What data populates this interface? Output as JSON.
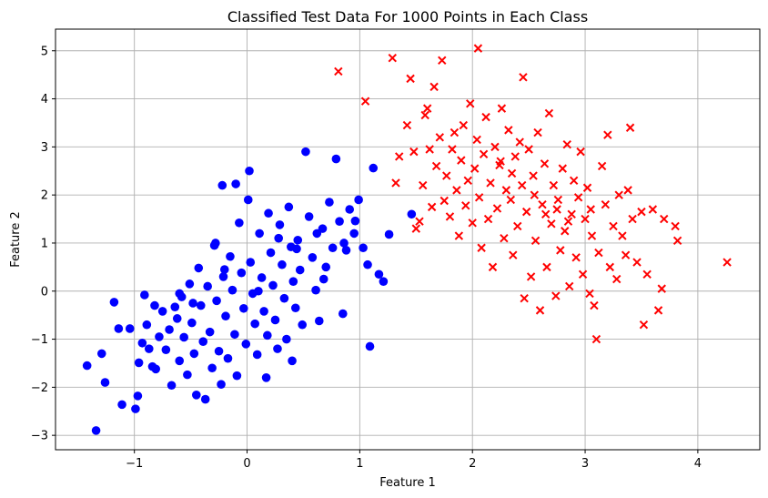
{
  "chart_data": {
    "type": "scatter",
    "title": "Classified Test Data For 1000 Points in Each Class",
    "xlabel": "Feature 1",
    "ylabel": "Feature 2",
    "xlim": [
      -1.7,
      4.55
    ],
    "ylim": [
      -3.3,
      5.45
    ],
    "xticks": [
      -1,
      0,
      1,
      2,
      3,
      4
    ],
    "yticks": [
      -3,
      -2,
      -1,
      0,
      1,
      2,
      3,
      4,
      5
    ],
    "grid": true,
    "legend": "none",
    "series": [
      {
        "marker": "circle",
        "color": "#0000ff",
        "points": [
          [
            -1.42,
            -1.55
          ],
          [
            -1.34,
            -2.9
          ],
          [
            -1.29,
            -1.3
          ],
          [
            -1.26,
            -1.9
          ],
          [
            -1.18,
            -0.23
          ],
          [
            -1.14,
            -0.78
          ],
          [
            -1.11,
            -2.36
          ],
          [
            -1.04,
            -0.78
          ],
          [
            -0.99,
            -2.45
          ],
          [
            -0.97,
            -2.18
          ],
          [
            -0.96,
            -1.49
          ],
          [
            -0.93,
            -1.08
          ],
          [
            -0.91,
            -0.08
          ],
          [
            -0.89,
            -0.7
          ],
          [
            -0.87,
            -1.2
          ],
          [
            -0.84,
            -1.57
          ],
          [
            -0.81,
            -1.62
          ],
          [
            -0.78,
            -0.95
          ],
          [
            -0.75,
            -0.42
          ],
          [
            -0.72,
            -1.22
          ],
          [
            -0.69,
            -0.8
          ],
          [
            -0.67,
            -1.96
          ],
          [
            -0.64,
            -0.33
          ],
          [
            -0.62,
            -0.57
          ],
          [
            -0.6,
            -1.45
          ],
          [
            -0.58,
            -0.12
          ],
          [
            -0.56,
            -0.96
          ],
          [
            -0.53,
            -1.74
          ],
          [
            -0.51,
            0.15
          ],
          [
            -0.49,
            -0.66
          ],
          [
            -0.47,
            -1.3
          ],
          [
            -0.45,
            -2.16
          ],
          [
            -0.43,
            0.48
          ],
          [
            -0.41,
            -0.3
          ],
          [
            -0.39,
            -1.05
          ],
          [
            -0.37,
            -2.25
          ],
          [
            -0.35,
            0.1
          ],
          [
            -0.33,
            -0.85
          ],
          [
            -0.31,
            -1.6
          ],
          [
            -0.29,
            0.95
          ],
          [
            -0.27,
            -0.2
          ],
          [
            -0.25,
            -1.25
          ],
          [
            -0.23,
            -1.94
          ],
          [
            -0.21,
            0.3
          ],
          [
            -0.19,
            -0.52
          ],
          [
            -0.17,
            -1.4
          ],
          [
            -0.15,
            0.72
          ],
          [
            -0.13,
            0.02
          ],
          [
            -0.11,
            -0.9
          ],
          [
            -0.09,
            -1.76
          ],
          [
            -0.07,
            1.42
          ],
          [
            -0.05,
            0.38
          ],
          [
            -0.03,
            -0.36
          ],
          [
            -0.01,
            -1.1
          ],
          [
            0.01,
            1.9
          ],
          [
            0.03,
            0.6
          ],
          [
            0.05,
            -0.05
          ],
          [
            0.07,
            -0.68
          ],
          [
            0.09,
            -1.32
          ],
          [
            0.11,
            1.2
          ],
          [
            0.13,
            0.28
          ],
          [
            0.15,
            -0.42
          ],
          [
            0.17,
            -1.8
          ],
          [
            0.19,
            1.62
          ],
          [
            0.21,
            0.8
          ],
          [
            0.23,
            0.12
          ],
          [
            0.25,
            -0.6
          ],
          [
            0.27,
            -1.2
          ],
          [
            0.29,
            1.38
          ],
          [
            0.31,
            0.55
          ],
          [
            0.33,
            -0.15
          ],
          [
            0.35,
            -1.0
          ],
          [
            0.37,
            1.75
          ],
          [
            0.39,
            0.92
          ],
          [
            0.41,
            0.2
          ],
          [
            0.43,
            -0.35
          ],
          [
            0.45,
            1.06
          ],
          [
            0.47,
            0.44
          ],
          [
            0.49,
            -0.7
          ],
          [
            0.52,
            2.9
          ],
          [
            0.55,
            1.55
          ],
          [
            0.58,
            0.7
          ],
          [
            0.61,
            0.02
          ],
          [
            0.64,
            -0.62
          ],
          [
            0.67,
            1.3
          ],
          [
            0.7,
            0.5
          ],
          [
            0.73,
            1.85
          ],
          [
            0.76,
            0.9
          ],
          [
            0.79,
            2.75
          ],
          [
            0.82,
            1.45
          ],
          [
            0.85,
            -0.47
          ],
          [
            0.88,
            0.85
          ],
          [
            0.91,
            1.7
          ],
          [
            0.95,
            1.2
          ],
          [
            0.99,
            1.9
          ],
          [
            1.03,
            0.9
          ],
          [
            1.07,
            0.55
          ],
          [
            1.09,
            -1.15
          ],
          [
            1.12,
            2.56
          ],
          [
            1.17,
            0.35
          ],
          [
            1.21,
            0.2
          ],
          [
            1.26,
            1.18
          ],
          [
            1.46,
            1.6
          ],
          [
            -0.22,
            2.2
          ],
          [
            0.02,
            2.5
          ],
          [
            -0.28,
            1.0
          ],
          [
            -0.6,
            -0.05
          ],
          [
            -0.82,
            -0.3
          ],
          [
            0.18,
            -0.92
          ],
          [
            0.4,
            -1.45
          ],
          [
            -0.1,
            2.23
          ],
          [
            0.62,
            1.2
          ],
          [
            0.28,
            1.1
          ],
          [
            0.1,
            0.0
          ],
          [
            -0.2,
            0.45
          ],
          [
            -0.48,
            -0.25
          ],
          [
            0.68,
            0.25
          ],
          [
            0.86,
            1.0
          ],
          [
            0.96,
            1.46
          ],
          [
            0.44,
            0.88
          ]
        ]
      },
      {
        "marker": "x",
        "color": "#ff0000",
        "points": [
          [
            0.81,
            4.57
          ],
          [
            1.05,
            3.95
          ],
          [
            1.29,
            4.85
          ],
          [
            1.32,
            2.25
          ],
          [
            1.35,
            2.8
          ],
          [
            1.42,
            3.45
          ],
          [
            1.45,
            4.42
          ],
          [
            1.48,
            2.9
          ],
          [
            1.5,
            1.3
          ],
          [
            1.53,
            1.45
          ],
          [
            1.56,
            2.2
          ],
          [
            1.58,
            3.66
          ],
          [
            1.6,
            3.8
          ],
          [
            1.62,
            2.95
          ],
          [
            1.64,
            1.75
          ],
          [
            1.66,
            4.25
          ],
          [
            1.68,
            2.6
          ],
          [
            1.71,
            3.2
          ],
          [
            1.73,
            4.8
          ],
          [
            1.75,
            1.88
          ],
          [
            1.77,
            2.4
          ],
          [
            1.8,
            1.55
          ],
          [
            1.82,
            2.95
          ],
          [
            1.84,
            3.3
          ],
          [
            1.86,
            2.1
          ],
          [
            1.88,
            1.15
          ],
          [
            1.9,
            2.72
          ],
          [
            1.92,
            3.45
          ],
          [
            1.94,
            1.78
          ],
          [
            1.96,
            2.3
          ],
          [
            1.98,
            3.9
          ],
          [
            2.0,
            1.42
          ],
          [
            2.02,
            2.55
          ],
          [
            2.04,
            3.15
          ],
          [
            2.05,
            5.05
          ],
          [
            2.06,
            1.95
          ],
          [
            2.08,
            0.9
          ],
          [
            2.1,
            2.85
          ],
          [
            2.12,
            3.62
          ],
          [
            2.14,
            1.5
          ],
          [
            2.16,
            2.25
          ],
          [
            2.18,
            0.5
          ],
          [
            2.2,
            3.0
          ],
          [
            2.22,
            1.72
          ],
          [
            2.24,
            2.62
          ],
          [
            2.26,
            3.8
          ],
          [
            2.28,
            1.1
          ],
          [
            2.3,
            2.1
          ],
          [
            2.32,
            3.35
          ],
          [
            2.34,
            1.9
          ],
          [
            2.36,
            0.75
          ],
          [
            2.38,
            2.8
          ],
          [
            2.4,
            1.35
          ],
          [
            2.42,
            3.1
          ],
          [
            2.44,
            2.2
          ],
          [
            2.45,
            4.45
          ],
          [
            2.46,
            -0.15
          ],
          [
            2.48,
            1.65
          ],
          [
            2.5,
            2.95
          ],
          [
            2.52,
            0.3
          ],
          [
            2.54,
            2.4
          ],
          [
            2.56,
            1.05
          ],
          [
            2.58,
            3.3
          ],
          [
            2.6,
            -0.4
          ],
          [
            2.62,
            1.8
          ],
          [
            2.64,
            2.65
          ],
          [
            2.66,
            0.5
          ],
          [
            2.68,
            3.7
          ],
          [
            2.7,
            1.4
          ],
          [
            2.72,
            2.2
          ],
          [
            2.74,
            -0.1
          ],
          [
            2.76,
            1.9
          ],
          [
            2.78,
            0.85
          ],
          [
            2.8,
            2.55
          ],
          [
            2.82,
            1.25
          ],
          [
            2.84,
            3.05
          ],
          [
            2.86,
            0.1
          ],
          [
            2.88,
            1.6
          ],
          [
            2.9,
            2.3
          ],
          [
            2.92,
            0.7
          ],
          [
            2.94,
            1.95
          ],
          [
            2.96,
            2.9
          ],
          [
            2.98,
            0.35
          ],
          [
            3.0,
            1.5
          ],
          [
            3.02,
            2.15
          ],
          [
            3.04,
            -0.05
          ],
          [
            3.06,
            1.15
          ],
          [
            3.08,
            -0.3
          ],
          [
            3.1,
            -1.0
          ],
          [
            3.12,
            0.8
          ],
          [
            3.15,
            2.6
          ],
          [
            3.18,
            1.8
          ],
          [
            3.2,
            3.25
          ],
          [
            3.22,
            0.5
          ],
          [
            3.25,
            1.35
          ],
          [
            3.28,
            0.25
          ],
          [
            3.3,
            2.0
          ],
          [
            3.33,
            1.15
          ],
          [
            3.36,
            0.75
          ],
          [
            3.38,
            2.1
          ],
          [
            3.4,
            3.4
          ],
          [
            3.42,
            1.5
          ],
          [
            3.46,
            0.6
          ],
          [
            3.5,
            1.65
          ],
          [
            3.52,
            -0.7
          ],
          [
            3.55,
            0.35
          ],
          [
            3.6,
            1.7
          ],
          [
            3.65,
            -0.4
          ],
          [
            3.68,
            0.05
          ],
          [
            3.7,
            1.5
          ],
          [
            3.8,
            1.35
          ],
          [
            3.82,
            1.05
          ],
          [
            4.26,
            0.6
          ],
          [
            2.25,
            2.7
          ],
          [
            2.35,
            2.45
          ],
          [
            2.55,
            2.0
          ],
          [
            2.65,
            1.6
          ],
          [
            2.75,
            1.7
          ],
          [
            2.85,
            1.45
          ],
          [
            3.05,
            1.7
          ]
        ]
      }
    ]
  }
}
